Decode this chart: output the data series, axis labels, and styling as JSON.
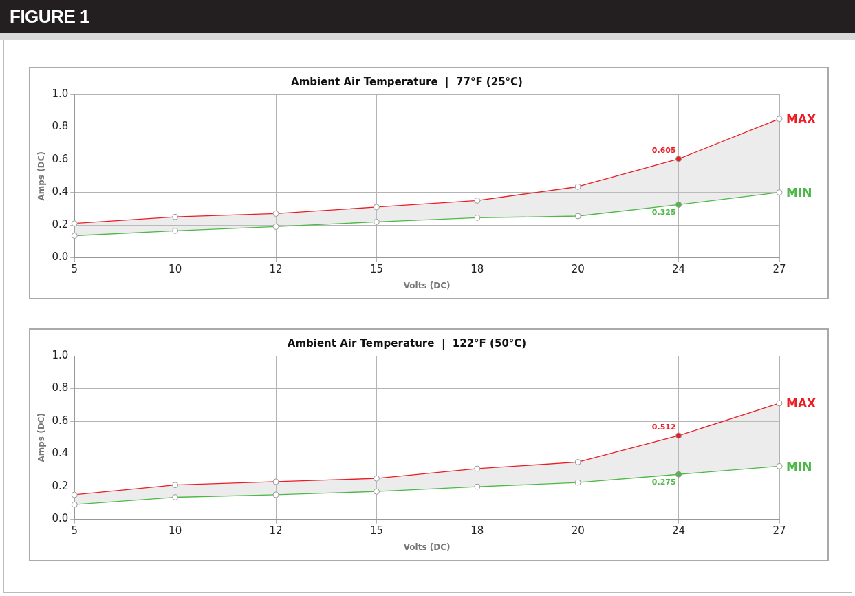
{
  "chart_data": [
    {
      "type": "line",
      "title": "Ambient Air Temperature  |  77°F (25°C)",
      "xlabel": "Volts (DC)",
      "ylabel": "Amps (DC)",
      "annotations": [
        "FIGURE 1"
      ],
      "categories": [
        "5",
        "10",
        "12",
        "15",
        "18",
        "20",
        "24",
        "27"
      ],
      "series": [
        {
          "name": "MAX",
          "color": "#ec1c24",
          "values": [
            0.21,
            0.25,
            0.27,
            0.31,
            0.35,
            0.435,
            0.605,
            0.85
          ],
          "value_labels": [
            null,
            null,
            null,
            null,
            null,
            null,
            "0.605",
            null
          ]
        },
        {
          "name": "MIN",
          "color": "#4db848",
          "values": [
            0.135,
            0.165,
            0.19,
            0.22,
            0.245,
            0.255,
            0.325,
            0.4
          ],
          "value_labels": [
            null,
            null,
            null,
            null,
            null,
            null,
            "0.325",
            null
          ],
          "lower": [
            0.135,
            0.165,
            0.19,
            0.22,
            0.245,
            0.255,
            0.325,
            0.4
          ],
          "upper": [
            0.21,
            0.25,
            0.27,
            0.31,
            0.35,
            0.435,
            0.605,
            0.85
          ]
        }
      ],
      "ylim": [
        0,
        1
      ],
      "yticks": [
        {
          "value": 0,
          "label": "0.0"
        },
        {
          "value": 0.2,
          "label": "0.2"
        },
        {
          "value": 0.4,
          "label": "0.4"
        },
        {
          "value": 0.6,
          "label": "0.6"
        },
        {
          "value": 0.8,
          "label": "0.8"
        },
        {
          "value": 1,
          "label": "1.0"
        }
      ],
      "grid": true,
      "legend": false,
      "marker": "circle",
      "line_style": "solid"
    },
    {
      "type": "line",
      "title": "Ambient Air Temperature  |  122°F (50°C)",
      "xlabel": "Volts (DC)",
      "ylabel": "Amps (DC)",
      "categories": [
        "5",
        "10",
        "12",
        "15",
        "18",
        "20",
        "24",
        "27"
      ],
      "series": [
        {
          "name": "MAX",
          "color": "#ec1c24",
          "values": [
            0.15,
            0.21,
            0.23,
            0.25,
            0.31,
            0.35,
            0.512,
            0.71
          ],
          "value_labels": [
            null,
            null,
            null,
            null,
            null,
            null,
            "0.512",
            null
          ]
        },
        {
          "name": "MIN",
          "color": "#4db848",
          "values": [
            0.09,
            0.135,
            0.15,
            0.17,
            0.2,
            0.225,
            0.275,
            0.325
          ],
          "value_labels": [
            null,
            null,
            null,
            null,
            null,
            null,
            "0.275",
            null
          ],
          "lower": [
            0.09,
            0.135,
            0.15,
            0.17,
            0.2,
            0.225,
            0.275,
            0.325
          ],
          "upper": [
            0.15,
            0.21,
            0.23,
            0.25,
            0.31,
            0.35,
            0.512,
            0.71
          ]
        }
      ],
      "ylim": [
        0,
        1
      ],
      "yticks": [
        {
          "value": 0,
          "label": "0.0"
        },
        {
          "value": 0.2,
          "label": "0.2"
        },
        {
          "value": 0.4,
          "label": "0.4"
        },
        {
          "value": 0.6,
          "label": "0.6"
        },
        {
          "value": 0.8,
          "label": "0.8"
        },
        {
          "value": 1,
          "label": "1.0"
        }
      ],
      "grid": true,
      "legend": false,
      "marker": "circle",
      "line_style": "solid"
    }
  ]
}
